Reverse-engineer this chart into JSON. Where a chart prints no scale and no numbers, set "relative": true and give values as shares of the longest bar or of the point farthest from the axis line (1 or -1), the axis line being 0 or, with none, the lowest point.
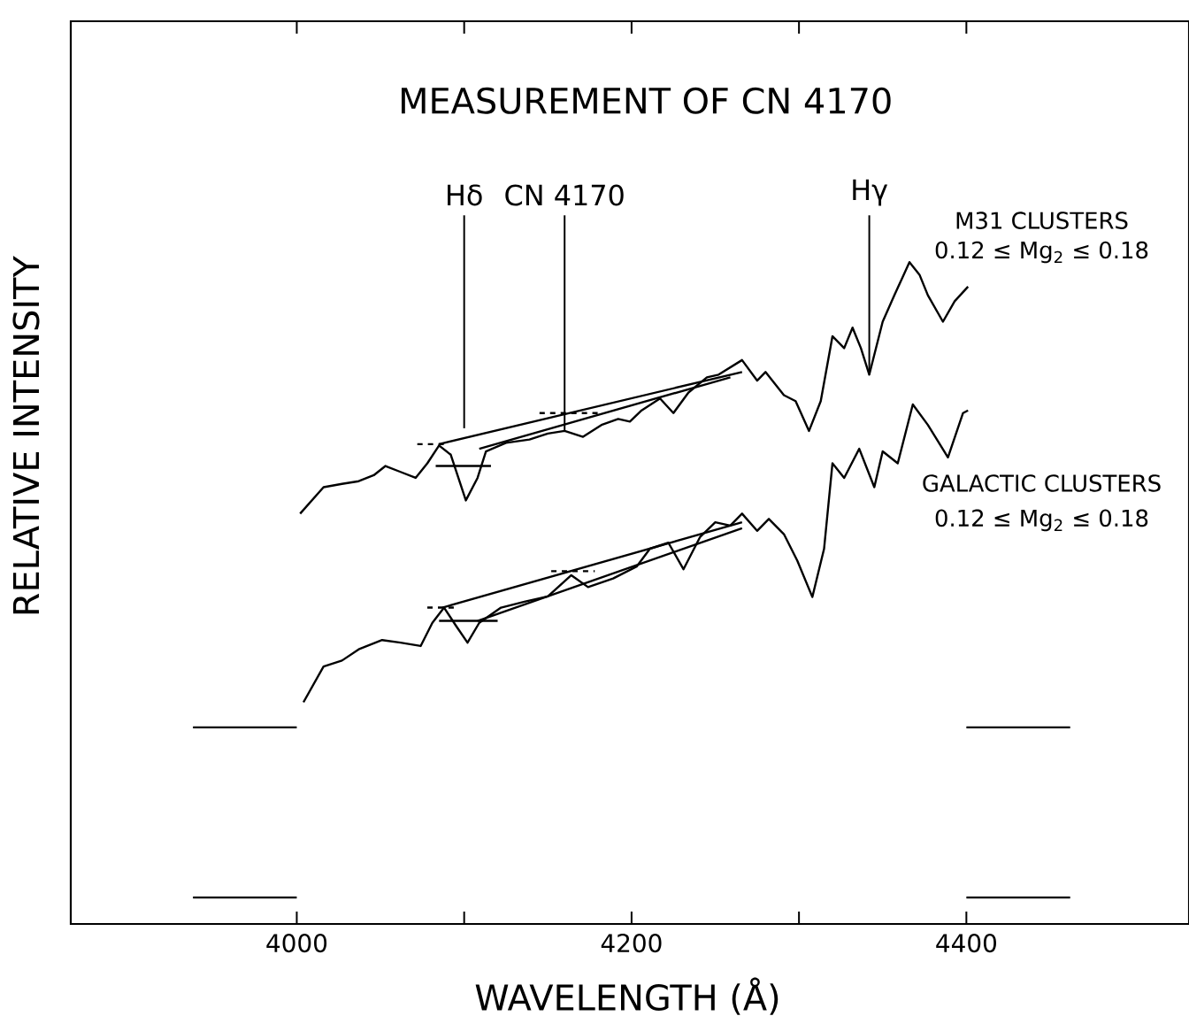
{
  "chart_data": {
    "type": "line",
    "title": "MEASUREMENT OF CN 4170",
    "xlabel": "WAVELENGTH (Å)",
    "ylabel": "RELATIVE INTENSITY",
    "relative": true,
    "xlim": [
      3865,
      4533
    ],
    "xticks": [
      4000,
      {
        "value": 4100,
        "label": null
      },
      4200,
      {
        "value": 4300,
        "label": null
      },
      4400
    ],
    "series": [
      {
        "name": "M31 CLUSTERS",
        "color": "#000000",
        "line_style": "solid",
        "x": [
          4002,
          4016,
          4027,
          4037,
          4046,
          4053,
          4062,
          4071,
          4078,
          4085,
          4092,
          4101,
          4108,
          4113,
          4125,
          4139,
          4150,
          4160,
          4171,
          4182,
          4192,
          4199,
          4206,
          4217,
          4225,
          4234,
          4245,
          4252,
          4266,
          4275,
          4280,
          4291,
          4298,
          4306,
          4313,
          4320,
          4327,
          4332,
          4337,
          4342,
          4350,
          4357,
          4366,
          4372,
          4377,
          4386,
          4393,
          4401
        ],
        "values": [
          0.62,
          0.66,
          0.665,
          0.669,
          0.678,
          0.692,
          0.683,
          0.674,
          0.696,
          0.723,
          0.709,
          0.64,
          0.674,
          0.714,
          0.727,
          0.732,
          0.741,
          0.745,
          0.736,
          0.754,
          0.763,
          0.759,
          0.776,
          0.794,
          0.772,
          0.803,
          0.826,
          0.83,
          0.852,
          0.821,
          0.834,
          0.799,
          0.79,
          0.745,
          0.79,
          0.888,
          0.87,
          0.901,
          0.87,
          0.83,
          0.91,
          0.95,
          1.0,
          0.981,
          0.95,
          0.91,
          0.941,
          0.963
        ]
      },
      {
        "name": "GALACTIC CLUSTERS",
        "color": "#000000",
        "line_style": "solid",
        "x": [
          4004,
          4016,
          4027,
          4037,
          4051,
          4062,
          4074,
          4081,
          4088,
          4095,
          4102,
          4109,
          4122,
          4136,
          4150,
          4164,
          4174,
          4189,
          4203,
          4211,
          4222,
          4231,
          4241,
          4250,
          4259,
          4266,
          4275,
          4282,
          4291,
          4299,
          4308,
          4315,
          4320,
          4327,
          4336,
          4345,
          4350,
          4359,
          4368,
          4377,
          4389,
          4398,
          4401
        ],
        "values": [
          0.335,
          0.389,
          0.398,
          0.415,
          0.429,
          0.425,
          0.42,
          0.455,
          0.478,
          0.451,
          0.425,
          0.455,
          0.478,
          0.487,
          0.495,
          0.527,
          0.509,
          0.522,
          0.54,
          0.567,
          0.576,
          0.536,
          0.585,
          0.607,
          0.602,
          0.62,
          0.594,
          0.612,
          0.589,
          0.549,
          0.494,
          0.567,
          0.696,
          0.674,
          0.718,
          0.66,
          0.714,
          0.696,
          0.785,
          0.754,
          0.705,
          0.772,
          0.776
        ]
      },
      {
        "color": "#000000",
        "line_style": "solid",
        "x": [
          3938,
          4000,
          4200,
          4400,
          4462
        ],
        "values": [
          0.297,
          0.297,
          null,
          0.297,
          0.297
        ]
      },
      {
        "color": "#000000",
        "line_style": "solid",
        "x": [
          3938,
          4000,
          4200,
          4400,
          4462
        ],
        "values": [
          0.04,
          0.04,
          null,
          0.04,
          0.04
        ]
      },
      {
        "color": "#000000",
        "line_style": "solid",
        "x": [
          4085,
          4266
        ],
        "values": [
          0.725,
          0.834
        ]
      },
      {
        "color": "#000000",
        "line_style": "solid",
        "x": [
          4109,
          4259
        ],
        "values": [
          0.718,
          0.826
        ]
      },
      {
        "color": "#000000",
        "line_style": "solid",
        "x": [
          4083,
          4116
        ],
        "values": [
          0.692,
          0.692
        ]
      },
      {
        "color": "#000000",
        "line_style": "dashed",
        "x": [
          4072,
          4090
        ],
        "values": [
          0.725,
          0.725
        ]
      },
      {
        "color": "#000000",
        "line_style": "dashed",
        "x": [
          4145,
          4182
        ],
        "values": [
          0.772,
          0.772
        ]
      },
      {
        "color": "#000000",
        "line_style": "solid",
        "x": [
          4087,
          4266
        ],
        "values": [
          0.478,
          0.607
        ]
      },
      {
        "color": "#000000",
        "line_style": "solid",
        "x": [
          4108,
          4266
        ],
        "values": [
          0.458,
          0.598
        ]
      },
      {
        "color": "#000000",
        "line_style": "solid",
        "x": [
          4085,
          4120
        ],
        "values": [
          0.458,
          0.458
        ]
      },
      {
        "color": "#000000",
        "line_style": "dashed",
        "x": [
          4078,
          4094
        ],
        "values": [
          0.478,
          0.478
        ]
      },
      {
        "color": "#000000",
        "line_style": "dashed",
        "x": [
          4152,
          4178
        ],
        "values": [
          0.533,
          0.533
        ]
      }
    ],
    "annotations": [
      "0.12 ≤ Mg$_{2}$ ≤ 0.18",
      "0.12 ≤ Mg$_{2}$ ≤ 0.18",
      {
        "text": "Hδ",
        "x": 4100,
        "y": 0.749
      },
      {
        "text": "CN 4170",
        "x": 4160,
        "y": 0.745
      },
      {
        "text": "Hγ",
        "x": 4342,
        "y": 0.83
      }
    ],
    "grid": false
  }
}
